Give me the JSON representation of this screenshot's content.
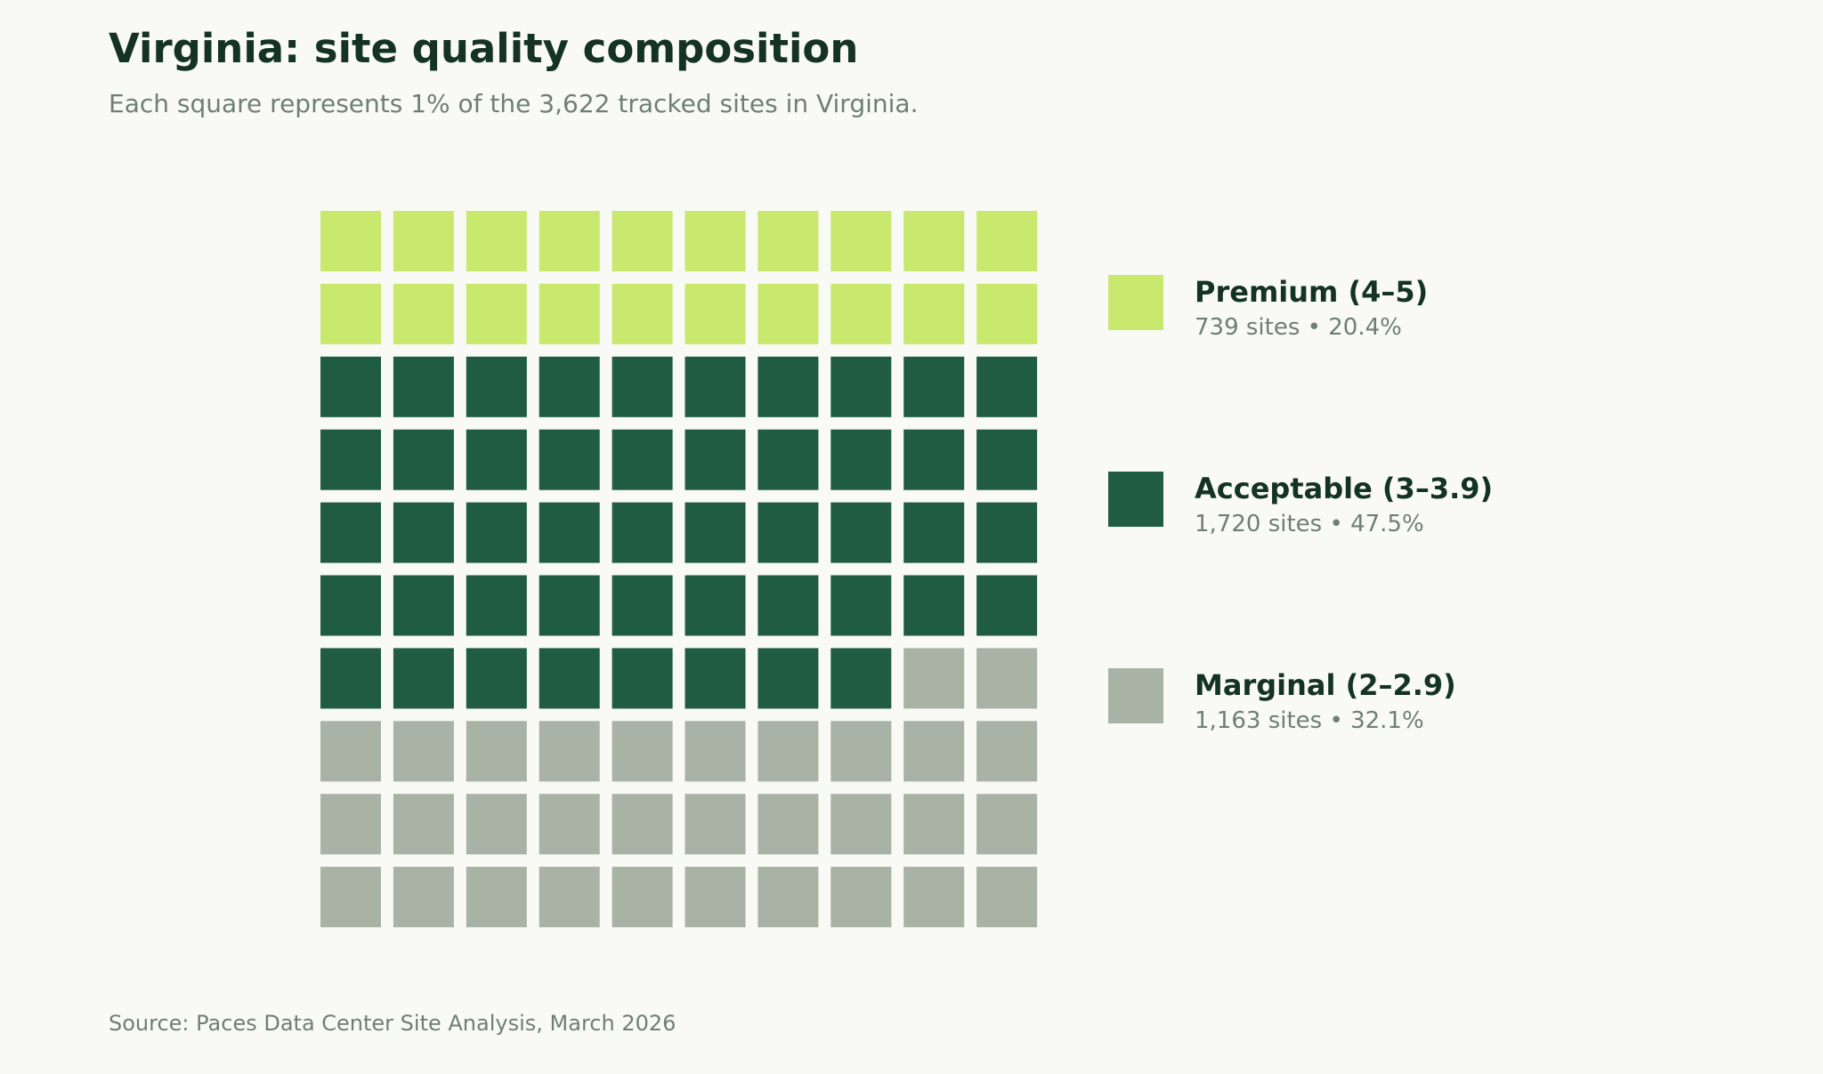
{
  "header": {
    "title": "Virginia: site quality composition",
    "subtitle": "Each square represents 1% of the 3,622 tracked sites in Virginia."
  },
  "chart_data": {
    "type": "waffle",
    "total_sites": 3622,
    "grid": {
      "rows": 10,
      "cols": 10,
      "unit": "1%"
    },
    "categories": [
      {
        "label": "Premium (4–5)",
        "sites": 739,
        "percent": 20.4,
        "squares": 20,
        "color": "#c8e86e",
        "stats": "739 sites  •  20.4%"
      },
      {
        "label": "Acceptable (3–3.9)",
        "sites": 1720,
        "percent": 47.5,
        "squares": 48,
        "color": "#1f5c42",
        "stats": "1,720 sites  •  47.5%"
      },
      {
        "label": "Marginal (2–2.9)",
        "sites": 1163,
        "percent": 32.1,
        "squares": 32,
        "color": "#a8b2a5",
        "stats": "1,163 sites  •  32.1%"
      }
    ]
  },
  "footer": {
    "source": "Source: Paces Data Center Site Analysis, March 2026"
  }
}
